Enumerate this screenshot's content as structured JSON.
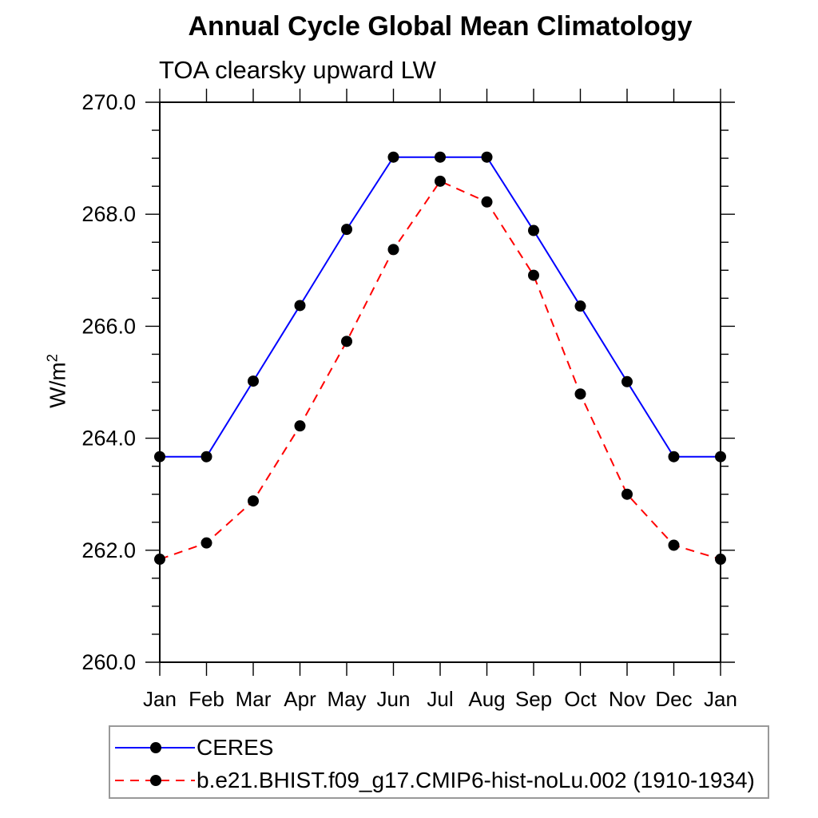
{
  "chart_data": {
    "type": "line",
    "title": "Annual Cycle Global Mean Climatology",
    "subtitle": "TOA clearsky upward LW",
    "xlabel": "",
    "ylabel": "W/m²",
    "ylabel_base": "W/m",
    "ylabel_sup": "2",
    "categories": [
      "Jan",
      "Feb",
      "Mar",
      "Apr",
      "May",
      "Jun",
      "Jul",
      "Aug",
      "Sep",
      "Oct",
      "Nov",
      "Dec",
      "Jan"
    ],
    "ylim": [
      260.0,
      270.0
    ],
    "ytick_major_interval": 2.0,
    "ytick_minor_interval": 0.5,
    "ytick_labels": [
      "260.0",
      "262.0",
      "264.0",
      "266.0",
      "268.0",
      "270.0"
    ],
    "grid": false,
    "legend_position": "bottom-left-box",
    "series": [
      {
        "name": "CERES",
        "color": "#0000ff",
        "line_style": "solid",
        "marker": "filled-circle",
        "marker_color": "#000000",
        "values": [
          263.67,
          263.67,
          265.02,
          266.37,
          267.73,
          269.02,
          269.02,
          269.02,
          267.71,
          266.36,
          265.01,
          263.67,
          263.67
        ]
      },
      {
        "name": "b.e21.BHIST.f09_g17.CMIP6-hist-noLu.002 (1910-1934)",
        "color": "#ff0000",
        "line_style": "dashed",
        "marker": "filled-circle",
        "marker_color": "#000000",
        "values": [
          261.84,
          262.13,
          262.88,
          264.22,
          265.73,
          267.37,
          268.59,
          268.22,
          266.91,
          264.79,
          263.0,
          262.09,
          261.84
        ]
      }
    ]
  }
}
